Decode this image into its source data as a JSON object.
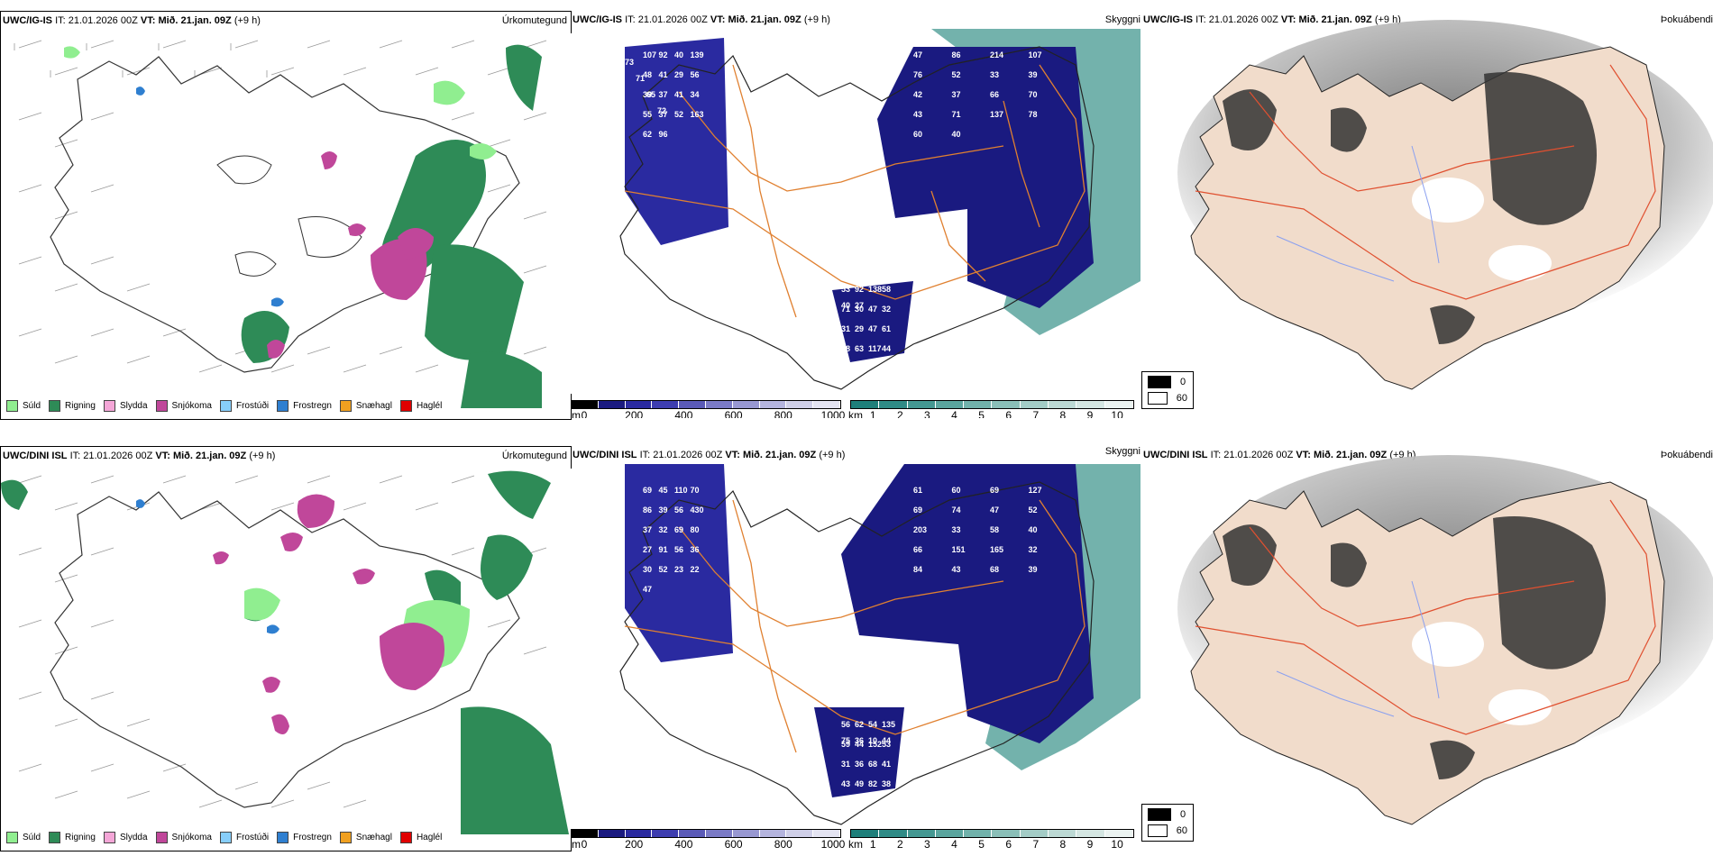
{
  "rows": [
    {
      "model": "UWC/IG-IS",
      "it_label": "IT:",
      "it_value": "21.01.2026 00Z",
      "vt_label": "VT:",
      "vt_value": "Mið. 21.jan. 09Z",
      "lead": "(+9 h)",
      "panels": {
        "precip_title": "Úrkomutegund",
        "vis_title": "Skyggni",
        "fog_title": "Þokuábendi"
      },
      "visibility_numbers": [
        "107",
        "47",
        "53",
        "92",
        "86",
        "92",
        "40",
        "214",
        "138",
        "139",
        "107",
        "58",
        "48",
        "76",
        "71",
        "41",
        "52",
        "30",
        "29",
        "33",
        "47",
        "56",
        "39",
        "32",
        "39",
        "42",
        "31",
        "37",
        "37",
        "29",
        "41",
        "66",
        "47",
        "34",
        "70",
        "61",
        "55",
        "43",
        "58",
        "37",
        "71",
        "63",
        "52",
        "137",
        "117",
        "163",
        "78",
        "44",
        "62",
        "60",
        "40",
        "96",
        "40",
        "27"
      ],
      "mountain_numbers": [
        "73",
        "71",
        "65",
        "72"
      ]
    },
    {
      "model": "UWC/DINI ISL",
      "it_label": "IT:",
      "it_value": "21.01.2026 00Z",
      "vt_label": "VT:",
      "vt_value": "Mið. 21.jan. 09Z",
      "lead": "(+9 h)",
      "panels": {
        "precip_title": "Úrkomutegund",
        "vis_title": "Skyggni",
        "fog_title": "Þokuábendi"
      },
      "visibility_numbers": [
        "69",
        "61",
        "56",
        "45",
        "60",
        "62",
        "110",
        "69",
        "54",
        "70",
        "127",
        "135",
        "86",
        "69",
        "59",
        "39",
        "74",
        "44",
        "56",
        "47",
        "152",
        "430",
        "52",
        "53",
        "37",
        "203",
        "31",
        "32",
        "33",
        "36",
        "69",
        "58",
        "68",
        "80",
        "40",
        "41",
        "27",
        "66",
        "43",
        "91",
        "151",
        "49",
        "56",
        "165",
        "82",
        "36",
        "32",
        "38",
        "30",
        "84",
        "75",
        "52",
        "43",
        "36",
        "23",
        "68",
        "10",
        "22",
        "39",
        "44",
        "47"
      ],
      "mountain_numbers": []
    }
  ],
  "precip_legend": [
    {
      "label": "Súld",
      "color": "#90ee90"
    },
    {
      "label": "Rigning",
      "color": "#2e8b57"
    },
    {
      "label": "Slydda",
      "color": "#f4a6d7"
    },
    {
      "label": "Snjókoma",
      "color": "#c0479a"
    },
    {
      "label": "Frostúði",
      "color": "#87cefa"
    },
    {
      "label": "Frostregn",
      "color": "#2f7fd0"
    },
    {
      "label": "Snæhagl",
      "color": "#f0a020"
    },
    {
      "label": "Haglél",
      "color": "#e00000"
    }
  ],
  "height_scale": {
    "unit": "m",
    "ticks": [
      "0",
      "200",
      "400",
      "600",
      "800",
      "1000"
    ],
    "colors": [
      "#000000",
      "#1a1a80",
      "#2a2aa0",
      "#3d3db0",
      "#5a5ab8",
      "#7a7ac6",
      "#9898d2",
      "#b4b4de",
      "#cfcfe8",
      "#e4e4f2"
    ]
  },
  "km_scale": {
    "unit": "km",
    "ticks": [
      "1",
      "2",
      "3",
      "4",
      "5",
      "6",
      "7",
      "8",
      "9",
      "10"
    ],
    "colors": [
      "#1e7f7a",
      "#2f8b86",
      "#449892",
      "#5aa59e",
      "#71b2ab",
      "#8abfb8",
      "#a3ccc6",
      "#bcd9d4",
      "#d4e6e2",
      "#ebf3f1"
    ]
  },
  "fog_legend": [
    {
      "label": "0",
      "color": "#000000"
    },
    {
      "label": "60",
      "color": "#ffffff"
    }
  ]
}
